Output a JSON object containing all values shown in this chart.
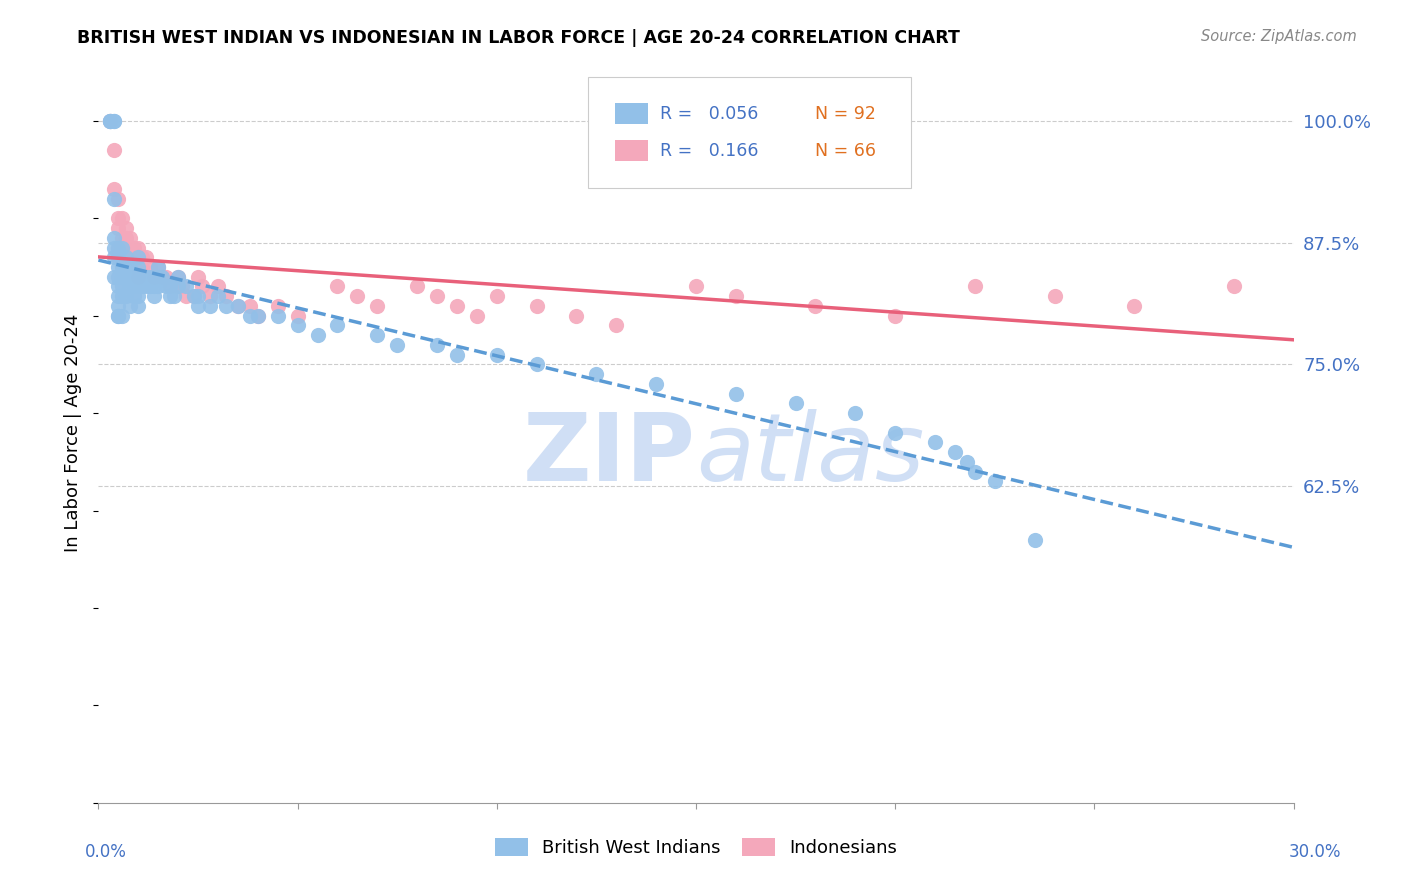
{
  "title": "BRITISH WEST INDIAN VS INDONESIAN IN LABOR FORCE | AGE 20-24 CORRELATION CHART",
  "source": "Source: ZipAtlas.com",
  "ylabel": "In Labor Force | Age 20-24",
  "xmin": 0.0,
  "xmax": 0.3,
  "ymin": 0.3,
  "ymax": 1.06,
  "ytick_vals": [
    0.625,
    0.75,
    0.875,
    1.0
  ],
  "ytick_labels": [
    "62.5%",
    "75.0%",
    "87.5%",
    "100.0%"
  ],
  "legend_r1": "R =   0.056",
  "legend_n1": "N = 92",
  "legend_r2": "R =   0.166",
  "legend_n2": "N = 66",
  "color_blue": "#92c0e8",
  "color_pink": "#f4a8bb",
  "line_blue": "#5b9bd5",
  "line_pink": "#e8607a",
  "text_blue": "#4472c4",
  "text_orange": "#e07020",
  "watermark_color": "#d0dff5",
  "blue_x": [
    0.003,
    0.003,
    0.003,
    0.004,
    0.004,
    0.004,
    0.004,
    0.004,
    0.004,
    0.004,
    0.005,
    0.005,
    0.005,
    0.005,
    0.005,
    0.005,
    0.005,
    0.005,
    0.005,
    0.006,
    0.006,
    0.006,
    0.006,
    0.006,
    0.006,
    0.007,
    0.007,
    0.007,
    0.007,
    0.008,
    0.008,
    0.008,
    0.008,
    0.009,
    0.009,
    0.009,
    0.01,
    0.01,
    0.01,
    0.01,
    0.01,
    0.01,
    0.011,
    0.011,
    0.012,
    0.012,
    0.013,
    0.013,
    0.014,
    0.014,
    0.015,
    0.015,
    0.015,
    0.016,
    0.017,
    0.018,
    0.018,
    0.019,
    0.02,
    0.02,
    0.022,
    0.024,
    0.025,
    0.025,
    0.028,
    0.03,
    0.032,
    0.035,
    0.038,
    0.04,
    0.045,
    0.05,
    0.055,
    0.06,
    0.07,
    0.075,
    0.085,
    0.09,
    0.1,
    0.11,
    0.125,
    0.14,
    0.16,
    0.175,
    0.19,
    0.2,
    0.21,
    0.215,
    0.218,
    0.22,
    0.225,
    0.235
  ],
  "blue_y": [
    1.0,
    1.0,
    1.0,
    1.0,
    1.0,
    0.92,
    0.88,
    0.87,
    0.86,
    0.84,
    0.87,
    0.86,
    0.85,
    0.84,
    0.83,
    0.82,
    0.81,
    0.8,
    0.8,
    0.87,
    0.85,
    0.84,
    0.83,
    0.82,
    0.8,
    0.86,
    0.85,
    0.84,
    0.82,
    0.85,
    0.84,
    0.83,
    0.81,
    0.84,
    0.83,
    0.82,
    0.86,
    0.85,
    0.84,
    0.83,
    0.82,
    0.81,
    0.84,
    0.83,
    0.84,
    0.83,
    0.84,
    0.83,
    0.83,
    0.82,
    0.85,
    0.84,
    0.83,
    0.84,
    0.83,
    0.83,
    0.82,
    0.82,
    0.84,
    0.83,
    0.83,
    0.82,
    0.82,
    0.81,
    0.81,
    0.82,
    0.81,
    0.81,
    0.8,
    0.8,
    0.8,
    0.79,
    0.78,
    0.79,
    0.78,
    0.77,
    0.77,
    0.76,
    0.76,
    0.75,
    0.74,
    0.73,
    0.72,
    0.71,
    0.7,
    0.68,
    0.67,
    0.66,
    0.65,
    0.64,
    0.63,
    0.57
  ],
  "pink_x": [
    0.003,
    0.004,
    0.004,
    0.005,
    0.005,
    0.005,
    0.005,
    0.005,
    0.006,
    0.006,
    0.006,
    0.007,
    0.007,
    0.007,
    0.008,
    0.008,
    0.008,
    0.009,
    0.009,
    0.01,
    0.01,
    0.01,
    0.01,
    0.011,
    0.011,
    0.012,
    0.013,
    0.014,
    0.015,
    0.016,
    0.017,
    0.018,
    0.02,
    0.02,
    0.021,
    0.022,
    0.024,
    0.025,
    0.026,
    0.028,
    0.03,
    0.032,
    0.035,
    0.038,
    0.04,
    0.045,
    0.05,
    0.06,
    0.065,
    0.07,
    0.08,
    0.085,
    0.09,
    0.095,
    0.1,
    0.11,
    0.12,
    0.13,
    0.15,
    0.16,
    0.18,
    0.2,
    0.22,
    0.24,
    0.26,
    0.285
  ],
  "pink_y": [
    1.0,
    0.97,
    0.93,
    0.92,
    0.9,
    0.89,
    0.87,
    0.86,
    0.9,
    0.88,
    0.87,
    0.89,
    0.88,
    0.87,
    0.88,
    0.87,
    0.86,
    0.87,
    0.86,
    0.87,
    0.86,
    0.85,
    0.84,
    0.86,
    0.85,
    0.86,
    0.85,
    0.84,
    0.85,
    0.84,
    0.84,
    0.83,
    0.84,
    0.83,
    0.83,
    0.82,
    0.82,
    0.84,
    0.83,
    0.82,
    0.83,
    0.82,
    0.81,
    0.81,
    0.8,
    0.81,
    0.8,
    0.83,
    0.82,
    0.81,
    0.83,
    0.82,
    0.81,
    0.8,
    0.82,
    0.81,
    0.8,
    0.79,
    0.83,
    0.82,
    0.81,
    0.8,
    0.83,
    0.82,
    0.81,
    0.83
  ]
}
